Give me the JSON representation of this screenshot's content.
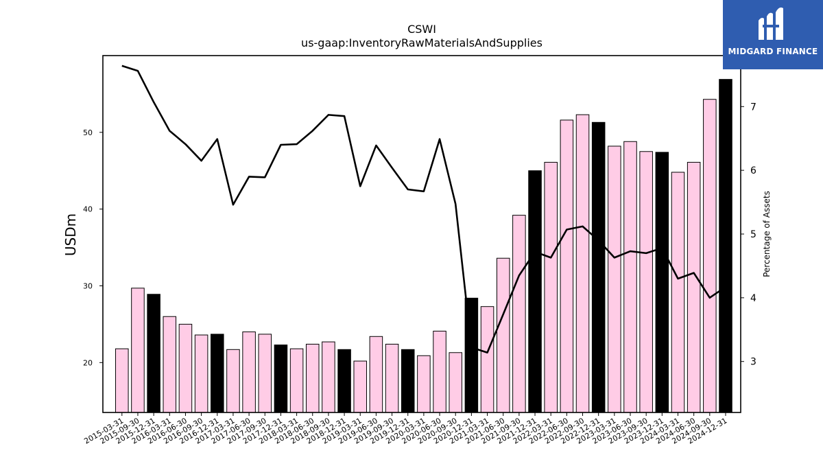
{
  "chart_data": {
    "type": "bar",
    "title": "CSWI",
    "subtitle": "us-gaap:InventoryRawMaterialsAndSupplies",
    "ylabel": "USDm",
    "y2label": "Percentage of Assets",
    "ylim": [
      13.5,
      60
    ],
    "y2lim": [
      2.2,
      7.8
    ],
    "yticks": [
      20,
      30,
      40,
      50
    ],
    "y2ticks": [
      3,
      4,
      5,
      6,
      7
    ],
    "categories": [
      "2015-03-31",
      "2015-09-30",
      "2015-12-31",
      "2016-03-31",
      "2016-06-30",
      "2016-09-30",
      "2016-12-31",
      "2017-03-31",
      "2017-06-30",
      "2017-09-30",
      "2017-12-31",
      "2018-03-31",
      "2018-06-30",
      "2018-09-30",
      "2018-12-31",
      "2019-03-31",
      "2019-06-30",
      "2019-09-30",
      "2019-12-31",
      "2020-03-31",
      "2020-06-30",
      "2020-09-30",
      "2020-12-31",
      "2021-03-31",
      "2021-06-30",
      "2021-09-30",
      "2021-12-31",
      "2022-03-31",
      "2022-06-30",
      "2022-09-30",
      "2022-12-31",
      "2023-03-31",
      "2023-06-30",
      "2023-09-30",
      "2023-12-31",
      "2024-03-31",
      "2024-06-30",
      "2024-09-30",
      "2024-12-31"
    ],
    "series": [
      {
        "kind": "bar",
        "axis": "left",
        "values": [
          21.8,
          29.7,
          28.9,
          26.0,
          25.0,
          23.6,
          23.7,
          21.7,
          24.0,
          23.7,
          22.3,
          21.8,
          22.4,
          22.7,
          21.7,
          20.2,
          23.4,
          22.4,
          21.7,
          20.9,
          24.1,
          21.3,
          28.4,
          27.3,
          33.6,
          39.2,
          45.0,
          46.1,
          51.6,
          52.3,
          51.3,
          48.2,
          48.8,
          47.5,
          47.4,
          44.8,
          46.1,
          54.3,
          56.9
        ],
        "highlight": [
          false,
          false,
          true,
          false,
          false,
          false,
          true,
          false,
          false,
          false,
          true,
          false,
          false,
          false,
          true,
          false,
          false,
          false,
          true,
          false,
          false,
          false,
          true,
          false,
          false,
          false,
          true,
          false,
          false,
          false,
          true,
          false,
          false,
          false,
          true,
          false,
          false,
          false,
          true
        ]
      },
      {
        "kind": "line",
        "axis": "right",
        "values": [
          7.64,
          7.56,
          7.07,
          6.62,
          6.41,
          6.15,
          6.49,
          5.46,
          5.9,
          5.89,
          6.4,
          6.41,
          6.62,
          6.87,
          6.85,
          5.75,
          6.39,
          6.04,
          5.7,
          5.67,
          6.49,
          5.47,
          3.22,
          3.14,
          3.74,
          4.35,
          4.72,
          4.63,
          5.07,
          5.12,
          4.9,
          4.63,
          4.73,
          4.7,
          4.78,
          4.3,
          4.39,
          4.0,
          4.17
        ]
      }
    ],
    "colors": {
      "bar": "#ffcce6",
      "bar_highlight": "#000000",
      "bar_edge": "#000000",
      "line": "#000000"
    }
  },
  "logo": {
    "text": "MIDGARD FINANCE",
    "bg": "#2f5db0"
  }
}
